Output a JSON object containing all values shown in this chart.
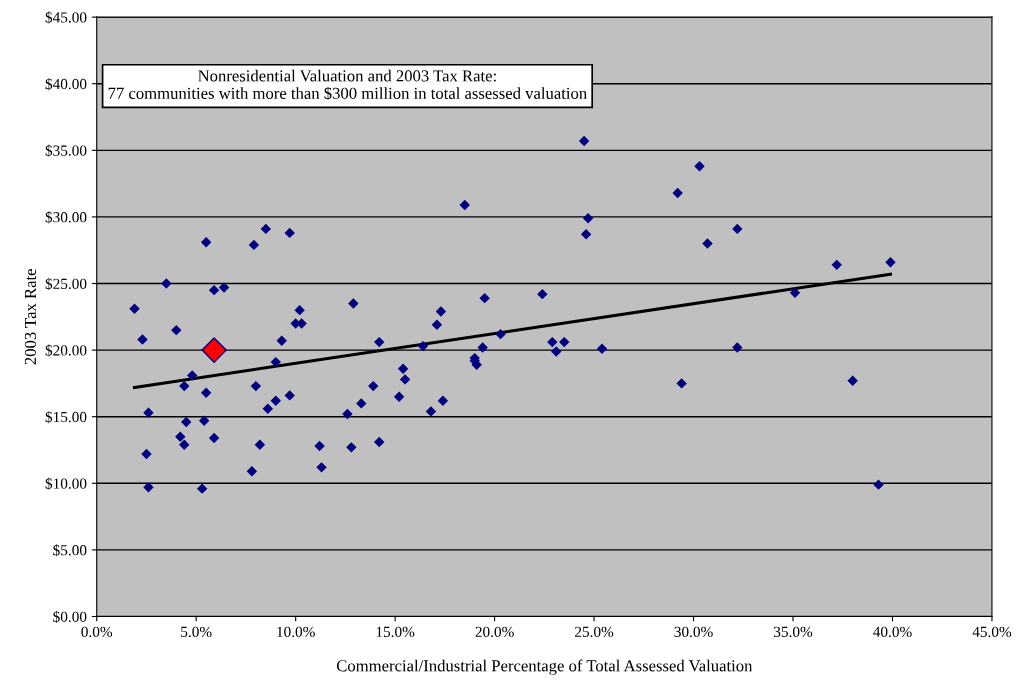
{
  "chart_data": {
    "type": "scatter",
    "title": "Nonresidential Valuation and 2003 Tax Rate:\n77 communities with more than $300 million in total assessed valuation",
    "xlabel": "Commercial/Industrial Percentage of Total Assessed Valuation",
    "ylabel": "2003 Tax Rate",
    "series": [
      {
        "color": "#000080",
        "marker": "diamond",
        "x": [
          1.9,
          2.3,
          2.5,
          2.6,
          2.6,
          3.5,
          4.0,
          4.2,
          4.4,
          4.4,
          4.5,
          4.8,
          5.3,
          5.4,
          5.5,
          5.5,
          5.9,
          5.9,
          6.4,
          7.8,
          7.9,
          8.0,
          8.2,
          8.5,
          8.6,
          9.0,
          9.0,
          9.3,
          9.7,
          9.7,
          10.0,
          10.2,
          10.3,
          11.2,
          11.3,
          12.6,
          12.8,
          12.9,
          13.3,
          13.9,
          14.2,
          14.2,
          15.2,
          15.4,
          15.5,
          16.4,
          16.8,
          17.1,
          17.3,
          17.4,
          18.5,
          19.0,
          19.0,
          19.1,
          19.4,
          19.5,
          20.3,
          22.4,
          22.9,
          23.1,
          23.5,
          24.5,
          24.6,
          24.7,
          25.4,
          29.2,
          29.4,
          30.3,
          30.7,
          32.2,
          32.2,
          35.1,
          37.2,
          38.0,
          39.3,
          39.9
        ],
        "values": [
          23.1,
          20.8,
          12.2,
          15.3,
          9.7,
          25.0,
          21.5,
          13.5,
          12.9,
          17.3,
          14.6,
          18.1,
          9.6,
          14.7,
          28.1,
          16.8,
          24.5,
          13.4,
          24.7,
          10.9,
          27.9,
          17.3,
          12.9,
          29.1,
          15.6,
          19.1,
          16.2,
          20.7,
          28.8,
          16.6,
          22.0,
          23.0,
          22.0,
          12.8,
          11.2,
          15.2,
          12.7,
          23.5,
          16.0,
          17.3,
          20.6,
          13.1,
          16.5,
          18.6,
          17.8,
          20.3,
          15.4,
          21.9,
          22.9,
          16.2,
          30.9,
          19.4,
          19.2,
          18.9,
          20.2,
          23.9,
          21.2,
          24.2,
          20.6,
          19.9,
          20.6,
          35.7,
          28.7,
          29.9,
          20.1,
          31.8,
          17.5,
          33.8,
          28.0,
          29.1,
          20.2,
          24.3,
          26.4,
          17.7,
          9.9,
          26.6
        ]
      },
      {
        "color": "#ff0000",
        "marker": "diamond",
        "x": [
          5.9
        ],
        "values": [
          20.0
        ]
      },
      {
        "type": "line",
        "color": "#000000",
        "marker": "none",
        "line_style": "solid",
        "x": [
          1.9,
          39.9
        ],
        "values": [
          17.2,
          25.7
        ]
      }
    ],
    "xlim": [
      0,
      45
    ],
    "ylim": [
      0,
      45
    ],
    "xticks": [
      {
        "value": 0,
        "label": "0.0%"
      },
      {
        "value": 5,
        "label": "5.0%"
      },
      {
        "value": 10,
        "label": "10.0%"
      },
      {
        "value": 15,
        "label": "15.0%"
      },
      {
        "value": 20,
        "label": "20.0%"
      },
      {
        "value": 25,
        "label": "25.0%"
      },
      {
        "value": 30,
        "label": "30.0%"
      },
      {
        "value": 35,
        "label": "35.0%"
      },
      {
        "value": 40,
        "label": "40.0%"
      },
      {
        "value": 45,
        "label": "45.0%"
      }
    ],
    "yticks": [
      {
        "value": 0,
        "label": "$0.00"
      },
      {
        "value": 5,
        "label": "$5.00"
      },
      {
        "value": 10,
        "label": "$10.00"
      },
      {
        "value": 15,
        "label": "$15.00"
      },
      {
        "value": 20,
        "label": "$20.00"
      },
      {
        "value": 25,
        "label": "$25.00"
      },
      {
        "value": 30,
        "label": "$30.00"
      },
      {
        "value": 35,
        "label": "$35.00"
      },
      {
        "value": 40,
        "label": "$40.00"
      },
      {
        "value": 45,
        "label": "$45.00"
      }
    ],
    "grid": "y",
    "legend": false
  }
}
